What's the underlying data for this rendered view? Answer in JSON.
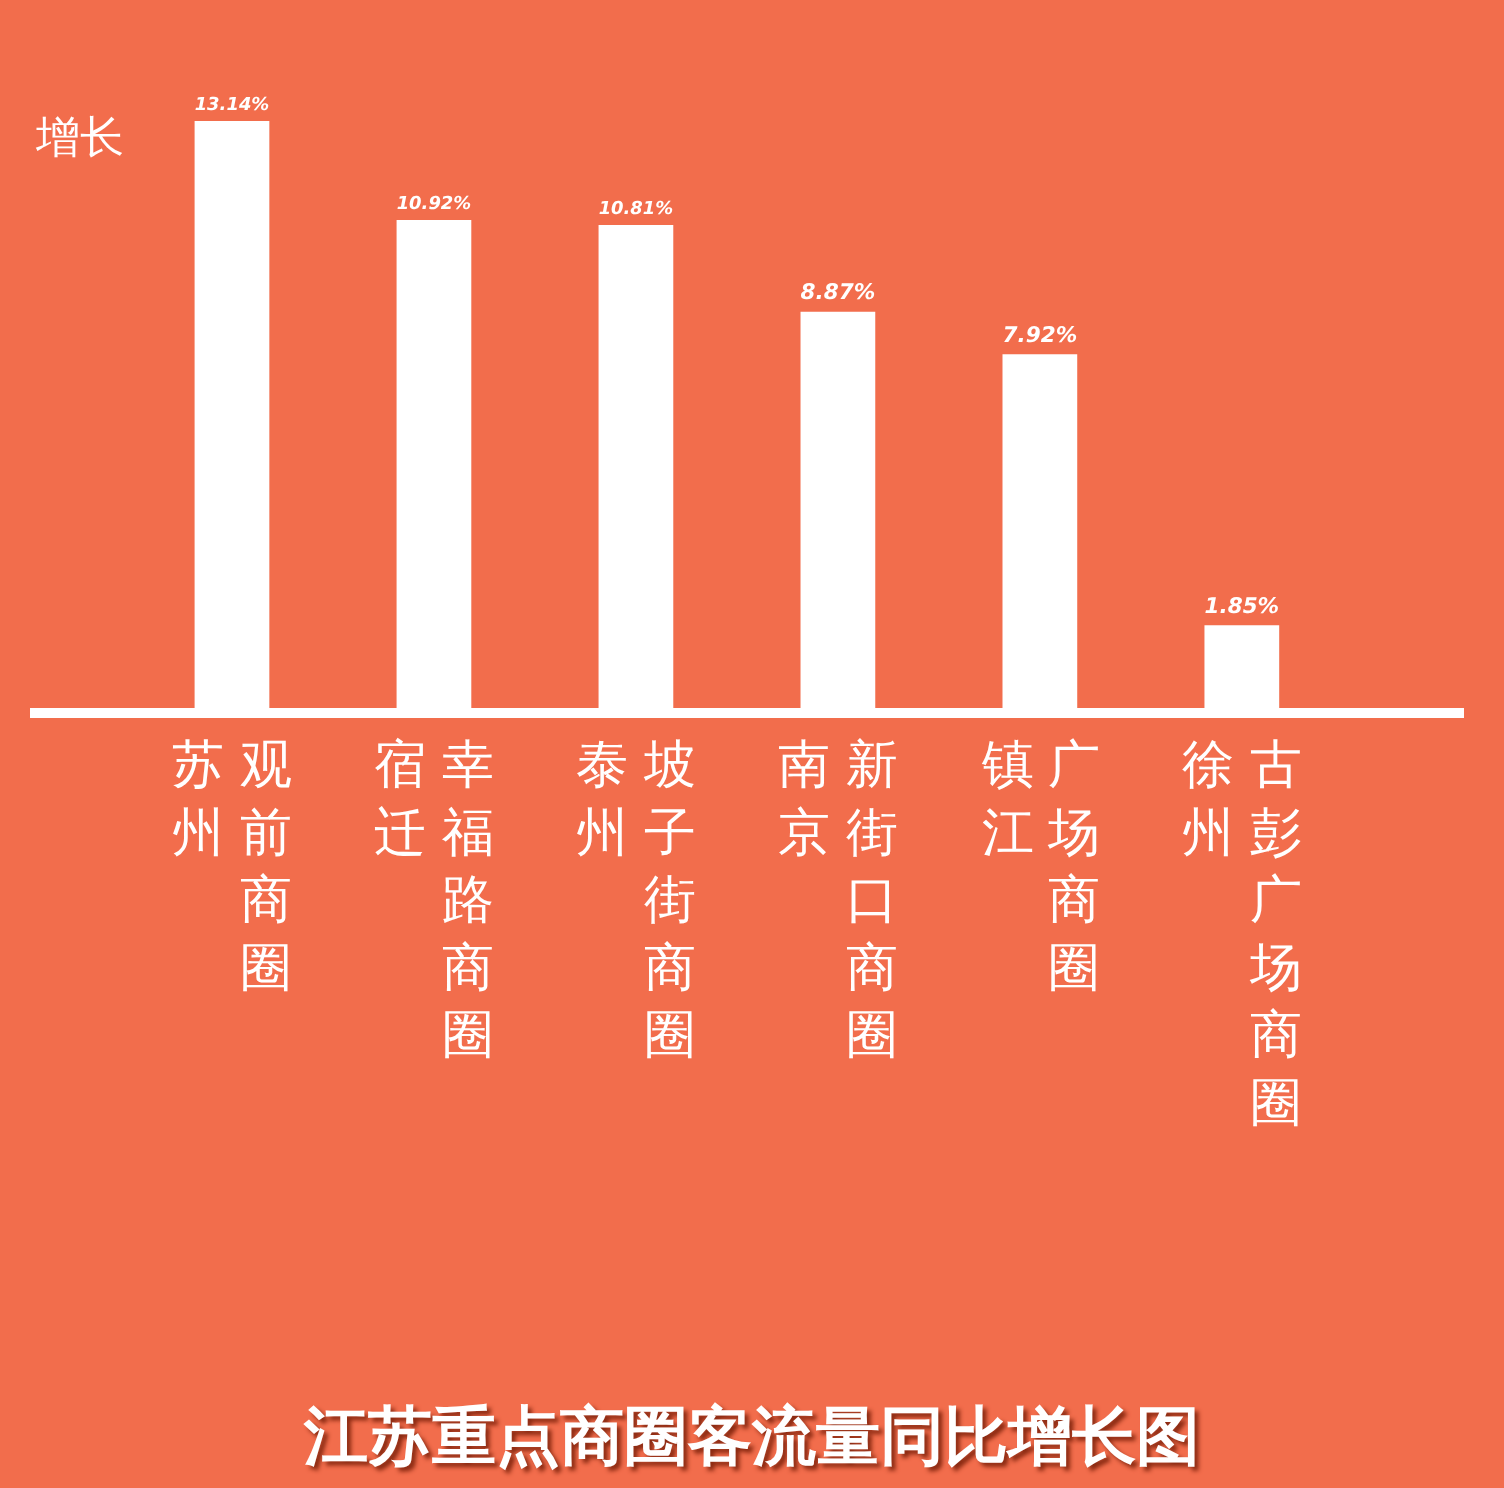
{
  "chart_data": {
    "type": "bar",
    "title": "江苏重点商圈客流量同比增长图",
    "ylabel": "增长",
    "categories": [
      "苏州观前商圈",
      "宿迁幸福路商圈",
      "泰州坡子街商圈",
      "南京新街口商圈",
      "镇江广场商圈",
      "徐州古彭广场商圈"
    ],
    "values": [
      13.14,
      10.92,
      10.81,
      8.87,
      7.92,
      1.85
    ],
    "value_labels": [
      "13.14%",
      "10.92%",
      "10.81%",
      "8.87%",
      "7.92%",
      "1.85%"
    ],
    "color": "#ffffff",
    "relative": false,
    "grid": false,
    "legend": false
  }
}
